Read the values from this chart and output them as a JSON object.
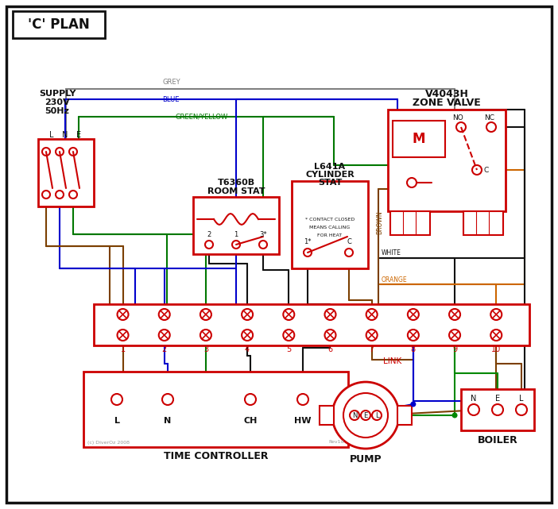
{
  "bg": "#ffffff",
  "red": "#cc0000",
  "blk": "#111111",
  "grey": "#808080",
  "blue": "#0000cc",
  "gy": "#007700",
  "brown": "#7B3F00",
  "orange": "#cc6600",
  "green": "#008800",
  "figw": 7.02,
  "figh": 6.41,
  "dpi": 100,
  "title": "'C' PLAN",
  "supply_label": "SUPPLY\n230V\n50Hz",
  "lne": "L   N   E",
  "zone_valve_label1": "V4043H",
  "zone_valve_label2": "ZONE VALVE",
  "room_stat1": "T6360B",
  "room_stat2": "ROOM STAT",
  "cyl_stat1": "L641A",
  "cyl_stat2": "CYLINDER",
  "cyl_stat3": "STAT",
  "contact_note1": "* CONTACT CLOSED",
  "contact_note2": "MEANS CALLING",
  "contact_note3": "FOR HEAT",
  "tc_label": "TIME CONTROLLER",
  "tc_terms": [
    "L",
    "N",
    "CH",
    "HW"
  ],
  "pump_label": "PUMP",
  "boiler_label": "BOILER",
  "link_label": "LINK",
  "no_label": "NO",
  "nc_label": "NC",
  "c_label": "C",
  "m_label": "M",
  "grey_label": "GREY",
  "blue_label": "BLUE",
  "gy_label": "GREEN/YELLOW",
  "brown_label": "BROWN",
  "white_label": "WHITE",
  "orange_label": "ORANGE",
  "copyright": "(c) DiverOz 2008",
  "rev": "Rev1d",
  "term_labels": [
    "1",
    "2",
    "3",
    "4",
    "5",
    "6",
    "7",
    "8",
    "9",
    "10"
  ],
  "nel": [
    "N",
    "E",
    "L"
  ]
}
